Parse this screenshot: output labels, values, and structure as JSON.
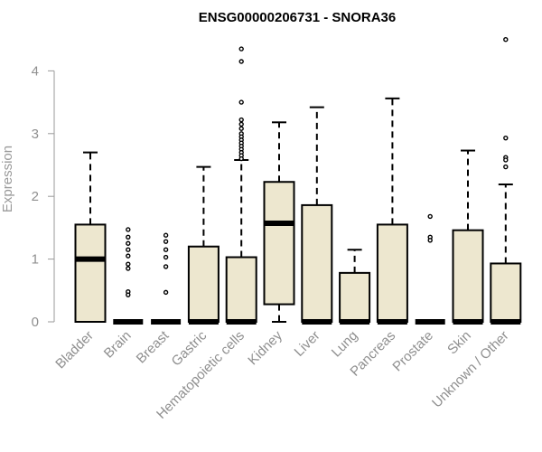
{
  "chart_data": {
    "type": "boxplot",
    "title": "ENSG00000206731 - SNORA36",
    "xlabel": "",
    "ylabel": "Expression",
    "ylim": [
      0,
      4.5
    ],
    "yticks": [
      0,
      1,
      2,
      3,
      4
    ],
    "grid": false,
    "box_color": "#ede7cf",
    "categories": [
      "Bladder",
      "Brain",
      "Breast",
      "Gastric",
      "Hematopoietic cells",
      "Kidney",
      "Liver",
      "Lung",
      "Pancreas",
      "Prostate",
      "Skin",
      "Unknown / Other"
    ],
    "boxes": [
      {
        "q1": 0,
        "median": 1.0,
        "q3": 1.55,
        "whisker_low": 0,
        "whisker_high": 2.7,
        "outliers": []
      },
      {
        "q1": 0,
        "median": 0,
        "q3": 0,
        "whisker_low": 0,
        "whisker_high": 0,
        "outliers": [
          1.47,
          1.35,
          1.25,
          1.15,
          1.05,
          0.92,
          0.85,
          0.48,
          0.43
        ]
      },
      {
        "q1": 0,
        "median": 0,
        "q3": 0,
        "whisker_low": 0,
        "whisker_high": 0,
        "outliers": [
          1.38,
          1.28,
          1.15,
          1.03,
          0.88,
          0.47
        ]
      },
      {
        "q1": 0,
        "median": 0,
        "q3": 1.2,
        "whisker_low": 0,
        "whisker_high": 2.47,
        "outliers": []
      },
      {
        "q1": 0,
        "median": 0,
        "q3": 1.03,
        "whisker_low": 0,
        "whisker_high": 2.58,
        "outliers": [
          4.35,
          4.15,
          3.5,
          3.22,
          3.15,
          3.08,
          3.0,
          2.95,
          2.9,
          2.85,
          2.8,
          2.75,
          2.7,
          2.65,
          2.6
        ]
      },
      {
        "q1": 0.28,
        "median": 1.57,
        "q3": 2.23,
        "whisker_low": 0,
        "whisker_high": 3.18,
        "outliers": []
      },
      {
        "q1": 0,
        "median": 0,
        "q3": 1.86,
        "whisker_low": 0,
        "whisker_high": 3.42,
        "outliers": []
      },
      {
        "q1": 0,
        "median": 0,
        "q3": 0.78,
        "whisker_low": 0,
        "whisker_high": 1.15,
        "outliers": []
      },
      {
        "q1": 0,
        "median": 0,
        "q3": 1.55,
        "whisker_low": 0,
        "whisker_high": 3.56,
        "outliers": []
      },
      {
        "q1": 0,
        "median": 0,
        "q3": 0,
        "whisker_low": 0,
        "whisker_high": 0,
        "outliers": [
          1.68,
          1.35,
          1.3
        ]
      },
      {
        "q1": 0,
        "median": 0,
        "q3": 1.46,
        "whisker_low": 0,
        "whisker_high": 2.73,
        "outliers": []
      },
      {
        "q1": 0,
        "median": 0,
        "q3": 0.93,
        "whisker_low": 0,
        "whisker_high": 2.19,
        "outliers": [
          4.5,
          2.93,
          2.62,
          2.58,
          2.47
        ]
      }
    ]
  }
}
